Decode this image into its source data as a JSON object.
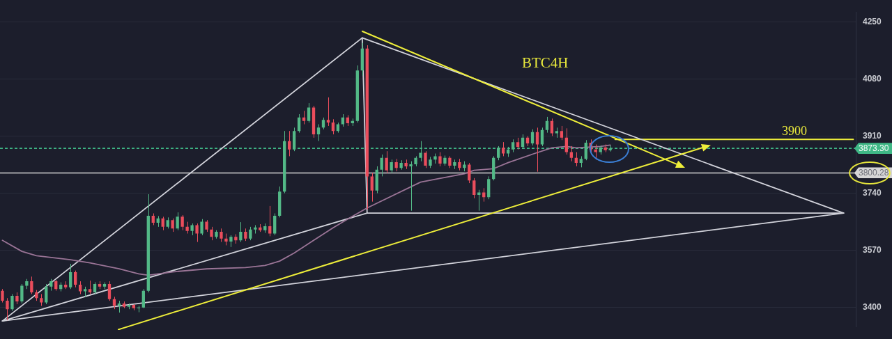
{
  "chart_data": {
    "type": "candlestick",
    "title": "BTC4H",
    "categories": [
      null,
      null,
      null,
      null,
      null,
      null,
      null,
      null,
      null,
      null,
      null,
      null,
      null,
      null,
      null,
      null,
      null,
      null,
      null,
      null,
      null,
      null,
      null,
      null,
      null,
      null,
      null,
      null,
      null,
      null,
      null,
      null,
      null,
      null,
      null,
      null,
      null,
      null,
      null,
      null,
      null,
      null,
      null,
      null,
      null,
      null,
      null,
      null,
      null,
      null,
      null,
      null,
      null,
      null,
      null,
      null,
      null,
      null,
      null,
      null,
      null,
      null,
      null,
      null,
      null,
      null,
      null,
      null,
      null,
      null,
      null,
      null,
      null,
      null,
      null,
      null,
      null,
      null,
      null,
      null,
      null,
      null,
      null,
      null,
      null,
      null,
      null,
      null,
      null,
      null,
      null,
      null,
      null,
      null,
      null,
      null,
      null,
      null,
      null,
      null,
      null,
      null,
      null,
      null,
      null,
      null,
      null,
      null,
      null,
      null,
      null,
      null,
      null,
      null,
      null,
      null,
      null,
      null,
      null,
      null,
      null,
      null,
      null,
      null,
      null,
      null,
      null,
      null,
      null,
      null,
      null,
      null,
      null,
      null,
      null,
      null,
      null,
      null,
      null,
      null,
      null,
      null,
      null,
      null,
      null,
      null,
      null,
      null,
      null,
      null,
      null,
      null,
      null,
      null,
      null,
      null,
      null,
      null,
      null,
      null,
      null,
      null,
      null,
      null,
      null,
      null,
      null,
      null,
      null,
      null,
      null,
      null,
      null,
      null,
      null,
      null
    ],
    "ohlc": [
      [
        3450,
        3455,
        3415,
        3420
      ],
      [
        3420,
        3428,
        3362,
        3395
      ],
      [
        3395,
        3440,
        3390,
        3435
      ],
      [
        3435,
        3445,
        3410,
        3418
      ],
      [
        3418,
        3470,
        3412,
        3465
      ],
      [
        3465,
        3485,
        3455,
        3478
      ],
      [
        3478,
        3492,
        3440,
        3445
      ],
      [
        3445,
        3452,
        3420,
        3428
      ],
      [
        3428,
        3440,
        3405,
        3415
      ],
      [
        3415,
        3470,
        3410,
        3462
      ],
      [
        3462,
        3485,
        3450,
        3478
      ],
      [
        3478,
        3482,
        3450,
        3455
      ],
      [
        3455,
        3475,
        3448,
        3468
      ],
      [
        3468,
        3478,
        3455,
        3460
      ],
      [
        3460,
        3530,
        3455,
        3505
      ],
      [
        3505,
        3510,
        3460,
        3468
      ],
      [
        3468,
        3478,
        3440,
        3448
      ],
      [
        3448,
        3462,
        3432,
        3455
      ],
      [
        3455,
        3480,
        3440,
        3445
      ],
      [
        3445,
        3475,
        3440,
        3470
      ],
      [
        3470,
        3478,
        3455,
        3462
      ],
      [
        3462,
        3475,
        3455,
        3470
      ],
      [
        3470,
        3478,
        3420,
        3425
      ],
      [
        3425,
        3432,
        3395,
        3405
      ],
      [
        3405,
        3420,
        3385,
        3412
      ],
      [
        3412,
        3418,
        3398,
        3402
      ],
      [
        3402,
        3412,
        3395,
        3408
      ],
      [
        3408,
        3410,
        3392,
        3398
      ],
      [
        3398,
        3405,
        3386,
        3400
      ],
      [
        3400,
        3455,
        3398,
        3450
      ],
      [
        3450,
        3737,
        3445,
        3673
      ],
      [
        3673,
        3680,
        3645,
        3652
      ],
      [
        3652,
        3672,
        3640,
        3665
      ],
      [
        3665,
        3670,
        3630,
        3640
      ],
      [
        3640,
        3668,
        3635,
        3660
      ],
      [
        3660,
        3665,
        3625,
        3635
      ],
      [
        3635,
        3683,
        3630,
        3670
      ],
      [
        3670,
        3675,
        3630,
        3640
      ],
      [
        3640,
        3655,
        3620,
        3628
      ],
      [
        3628,
        3650,
        3615,
        3645
      ],
      [
        3645,
        3650,
        3595,
        3620
      ],
      [
        3620,
        3663,
        3615,
        3655
      ],
      [
        3655,
        3660,
        3625,
        3632
      ],
      [
        3632,
        3640,
        3600,
        3610
      ],
      [
        3610,
        3630,
        3605,
        3625
      ],
      [
        3625,
        3635,
        3595,
        3605
      ],
      [
        3605,
        3620,
        3585,
        3596
      ],
      [
        3596,
        3615,
        3580,
        3610
      ],
      [
        3610,
        3618,
        3590,
        3600
      ],
      [
        3600,
        3654,
        3595,
        3625
      ],
      [
        3625,
        3635,
        3598,
        3605
      ],
      [
        3605,
        3640,
        3600,
        3632
      ],
      [
        3632,
        3645,
        3620,
        3638
      ],
      [
        3638,
        3648,
        3625,
        3630
      ],
      [
        3630,
        3650,
        3622,
        3642
      ],
      [
        3642,
        3702,
        3612,
        3620
      ],
      [
        3620,
        3680,
        3615,
        3673
      ],
      [
        3673,
        3760,
        3668,
        3745
      ],
      [
        3745,
        3925,
        3740,
        3895
      ],
      [
        3895,
        3925,
        3850,
        3870
      ],
      [
        3870,
        3935,
        3865,
        3925
      ],
      [
        3925,
        3975,
        3920,
        3965
      ],
      [
        3965,
        3985,
        3945,
        3955
      ],
      [
        3955,
        4008,
        3950,
        3995
      ],
      [
        3995,
        4000,
        3905,
        3915
      ],
      [
        3915,
        3945,
        3895,
        3935
      ],
      [
        3935,
        3965,
        3930,
        3958
      ],
      [
        3958,
        4025,
        3940,
        3950
      ],
      [
        3950,
        3960,
        3915,
        3925
      ],
      [
        3925,
        3950,
        3920,
        3945
      ],
      [
        3945,
        3975,
        3938,
        3965
      ],
      [
        3965,
        3972,
        3940,
        3948
      ],
      [
        3948,
        3962,
        3940,
        3955
      ],
      [
        3955,
        4120,
        3950,
        4105
      ],
      [
        4105,
        4187,
        4090,
        4170
      ],
      [
        4170,
        4180,
        3692,
        3790
      ],
      [
        3790,
        3800,
        3715,
        3748
      ],
      [
        3748,
        3820,
        3740,
        3810
      ],
      [
        3810,
        3855,
        3790,
        3845
      ],
      [
        3845,
        3865,
        3800,
        3808
      ],
      [
        3808,
        3840,
        3800,
        3832
      ],
      [
        3832,
        3842,
        3805,
        3815
      ],
      [
        3815,
        3838,
        3810,
        3830
      ],
      [
        3830,
        3840,
        3812,
        3820
      ],
      [
        3820,
        3835,
        3688,
        3826
      ],
      [
        3826,
        3850,
        3820,
        3845
      ],
      [
        3845,
        3895,
        3835,
        3860
      ],
      [
        3860,
        3865,
        3815,
        3822
      ],
      [
        3822,
        3848,
        3815,
        3840
      ],
      [
        3840,
        3858,
        3828,
        3850
      ],
      [
        3850,
        3862,
        3820,
        3828
      ],
      [
        3828,
        3852,
        3822,
        3845
      ],
      [
        3845,
        3850,
        3815,
        3822
      ],
      [
        3822,
        3840,
        3812,
        3832
      ],
      [
        3832,
        3842,
        3808,
        3815
      ],
      [
        3815,
        3835,
        3805,
        3825
      ],
      [
        3825,
        3830,
        3770,
        3778
      ],
      [
        3778,
        3785,
        3725,
        3735
      ],
      [
        3735,
        3750,
        3688,
        3742
      ],
      [
        3742,
        3755,
        3715,
        3728
      ],
      [
        3728,
        3790,
        3722,
        3782
      ],
      [
        3782,
        3850,
        3778,
        3845
      ],
      [
        3845,
        3880,
        3838,
        3875
      ],
      [
        3875,
        3892,
        3850,
        3858
      ],
      [
        3858,
        3878,
        3848,
        3870
      ],
      [
        3870,
        3900,
        3862,
        3892
      ],
      [
        3892,
        3905,
        3870,
        3878
      ],
      [
        3878,
        3915,
        3872,
        3905
      ],
      [
        3905,
        3910,
        3880,
        3888
      ],
      [
        3888,
        3930,
        3882,
        3922
      ],
      [
        3922,
        3935,
        3804,
        3885
      ],
      [
        3885,
        3935,
        3880,
        3928
      ],
      [
        3928,
        3967,
        3920,
        3955
      ],
      [
        3955,
        3962,
        3910,
        3918
      ],
      [
        3918,
        3935,
        3905,
        3925
      ],
      [
        3925,
        3940,
        3898,
        3905
      ],
      [
        3905,
        3933,
        3855,
        3862
      ],
      [
        3862,
        3880,
        3835,
        3845
      ],
      [
        3845,
        3862,
        3820,
        3830
      ],
      [
        3830,
        3850,
        3817,
        3842
      ],
      [
        3842,
        3898,
        3838,
        3890
      ],
      [
        3890,
        3900,
        3862,
        3870
      ],
      [
        3870,
        3885,
        3840,
        3862
      ],
      [
        3862,
        3882,
        3855,
        3876
      ],
      [
        3876,
        3885,
        3862,
        3868
      ],
      [
        3868,
        3882,
        3864,
        3873.3
      ],
      null,
      null,
      null,
      null,
      null,
      null,
      null,
      null,
      null,
      null,
      null,
      null,
      null,
      null,
      null,
      null,
      null,
      null,
      null,
      null,
      null,
      null,
      null,
      null,
      null,
      null,
      null,
      null,
      null,
      null,
      null,
      null,
      null,
      null,
      null,
      null,
      null,
      null,
      null,
      null,
      null,
      null,
      null,
      null,
      null,
      null,
      null,
      null,
      null,
      null
    ],
    "series": [
      {
        "type": "line",
        "color": "#9a7496",
        "values": [
          3600,
          null,
          null,
          null,
          3567,
          null,
          null,
          3554,
          null,
          null,
          null,
          null,
          null,
          null,
          3542,
          null,
          null,
          null,
          3533,
          null,
          null,
          null,
          null,
          null,
          3515,
          null,
          null,
          null,
          3500,
          null,
          3496,
          null,
          null,
          null,
          null,
          3506,
          null,
          null,
          null,
          null,
          null,
          null,
          3515,
          null,
          null,
          null,
          null,
          null,
          null,
          null,
          3519,
          null,
          null,
          null,
          3525,
          null,
          null,
          3538,
          null,
          null,
          3562,
          null,
          null,
          null,
          3600,
          null,
          null,
          null,
          3637,
          null,
          null,
          3663,
          null,
          null,
          null,
          3696,
          null,
          null,
          null,
          null,
          null,
          null,
          null,
          null,
          null,
          null,
          3773,
          null,
          null,
          null,
          null,
          null,
          null,
          null,
          null,
          3798,
          null,
          3808,
          null,
          null,
          null,
          3813,
          null,
          null,
          3831,
          null,
          null,
          null,
          null,
          3856,
          null,
          null,
          null,
          3875,
          null,
          null,
          3879,
          null,
          3875,
          null,
          null,
          null,
          null,
          3879,
          null,
          3883,
          null,
          null,
          null,
          null,
          null,
          null,
          null,
          null,
          null,
          null,
          null,
          null,
          null,
          null,
          null,
          null,
          null,
          null,
          null,
          null,
          null,
          null,
          null,
          null,
          null,
          null,
          null,
          null,
          null,
          null,
          null,
          null,
          null,
          null,
          null,
          null,
          null,
          null,
          null,
          null,
          null,
          null,
          null,
          null,
          null,
          null,
          null,
          null,
          null,
          null
        ]
      },
      {
        "type": "line",
        "color": "#d2d3db",
        "values": [
          3360,
          null,
          null,
          null,
          null,
          null,
          null,
          null,
          null,
          null,
          null,
          null,
          null,
          null,
          null,
          null,
          null,
          null,
          null,
          null,
          null,
          null,
          null,
          null,
          null,
          null,
          null,
          null,
          null,
          null,
          null,
          null,
          null,
          null,
          null,
          null,
          null,
          null,
          null,
          null,
          null,
          null,
          null,
          null,
          null,
          null,
          null,
          null,
          null,
          null,
          null,
          null,
          null,
          null,
          null,
          null,
          null,
          null,
          null,
          null,
          null,
          null,
          null,
          null,
          null,
          null,
          null,
          null,
          null,
          null,
          null,
          null,
          null,
          null,
          4202,
          3681,
          null,
          null,
          null,
          null,
          null,
          null,
          null,
          null,
          null,
          null,
          null,
          null,
          null,
          null,
          null,
          null,
          null,
          null,
          null,
          null,
          null,
          null,
          null,
          null,
          null,
          null,
          null,
          null,
          null,
          null,
          null,
          null,
          null,
          null,
          null,
          null,
          null,
          null,
          null,
          null,
          null,
          null,
          null,
          null,
          null,
          null,
          null,
          null,
          null,
          null,
          null,
          null,
          null,
          null,
          null,
          null,
          null,
          null,
          null,
          null,
          null,
          null,
          null,
          null,
          null,
          null,
          null,
          null,
          null,
          null,
          null,
          null,
          null,
          null,
          null,
          null,
          null,
          null,
          null,
          null,
          null,
          null,
          null,
          null,
          null,
          null,
          null,
          null,
          null,
          null,
          null,
          null,
          null,
          null,
          null,
          null,
          null,
          3681,
          null,
          null
        ]
      },
      {
        "type": "line",
        "color": "#d2d3db",
        "values": [
          3360,
          null,
          null,
          null,
          null,
          null,
          null,
          null,
          null,
          null,
          null,
          null,
          null,
          null,
          null,
          null,
          null,
          null,
          null,
          null,
          null,
          null,
          null,
          null,
          null,
          null,
          null,
          null,
          null,
          null,
          null,
          null,
          null,
          null,
          null,
          null,
          null,
          null,
          null,
          null,
          null,
          null,
          null,
          null,
          null,
          null,
          null,
          null,
          null,
          null,
          null,
          null,
          null,
          null,
          null,
          null,
          null,
          null,
          null,
          null,
          null,
          null,
          null,
          null,
          null,
          null,
          null,
          null,
          null,
          null,
          null,
          null,
          null,
          null,
          null,
          3681,
          null,
          null,
          null,
          null,
          null,
          null,
          null,
          null,
          null,
          null,
          null,
          null,
          null,
          null,
          null,
          null,
          null,
          null,
          null,
          null,
          null,
          null,
          null,
          null,
          null,
          null,
          null,
          null,
          null,
          null,
          null,
          null,
          null,
          null,
          null,
          null,
          null,
          null,
          null,
          null,
          null,
          null,
          null,
          null,
          null,
          null,
          null,
          null,
          null,
          null,
          null,
          null,
          null,
          null,
          null,
          null,
          null,
          null,
          null,
          null,
          null,
          null,
          null,
          null,
          null,
          null,
          null,
          null,
          null,
          null,
          null,
          null,
          null,
          null,
          null,
          null,
          null,
          null,
          null,
          null,
          null,
          null,
          null,
          null,
          null,
          null,
          null,
          null,
          null,
          null,
          null,
          null,
          null,
          null,
          null,
          null,
          null,
          null,
          null,
          null
        ]
      },
      {
        "type": "line",
        "color": "#d2d3db",
        "values": [
          null,
          null,
          null,
          null,
          null,
          null,
          null,
          null,
          null,
          null,
          null,
          null,
          null,
          null,
          null,
          null,
          null,
          null,
          null,
          null,
          null,
          null,
          null,
          null,
          null,
          null,
          null,
          null,
          null,
          null,
          null,
          null,
          null,
          null,
          null,
          null,
          null,
          null,
          null,
          null,
          null,
          null,
          null,
          null,
          null,
          null,
          null,
          null,
          null,
          null,
          null,
          null,
          null,
          null,
          null,
          null,
          null,
          null,
          null,
          null,
          null,
          null,
          null,
          null,
          null,
          null,
          null,
          null,
          null,
          null,
          null,
          null,
          null,
          null,
          4202,
          null,
          null,
          null,
          null,
          null,
          null,
          null,
          null,
          null,
          null,
          null,
          null,
          null,
          null,
          null,
          null,
          null,
          null,
          null,
          null,
          null,
          null,
          null,
          null,
          null,
          null,
          null,
          null,
          null,
          null,
          null,
          null,
          null,
          null,
          null,
          null,
          null,
          null,
          null,
          null,
          null,
          null,
          null,
          null,
          null,
          null,
          null,
          null,
          null,
          null,
          null,
          null,
          null,
          null,
          null,
          null,
          null,
          null,
          null,
          null,
          null,
          null,
          null,
          null,
          null,
          null,
          null,
          null,
          null,
          null,
          null,
          null,
          null,
          null,
          null,
          null,
          null,
          null,
          null,
          null,
          null,
          null,
          null,
          null,
          null,
          null,
          null,
          null,
          null,
          null,
          null,
          null,
          null,
          null,
          null,
          null,
          null,
          null,
          3681,
          null,
          null
        ]
      },
      {
        "type": "line",
        "color": "#d2d3db",
        "values": [
          3360,
          null,
          null,
          null,
          null,
          null,
          null,
          null,
          null,
          null,
          null,
          null,
          null,
          null,
          null,
          null,
          null,
          null,
          null,
          null,
          null,
          null,
          null,
          null,
          null,
          null,
          null,
          null,
          null,
          null,
          null,
          null,
          null,
          null,
          null,
          null,
          null,
          null,
          null,
          null,
          null,
          null,
          null,
          null,
          null,
          null,
          null,
          null,
          null,
          null,
          null,
          null,
          null,
          null,
          null,
          null,
          null,
          null,
          null,
          null,
          null,
          null,
          null,
          null,
          null,
          null,
          null,
          null,
          null,
          null,
          null,
          null,
          null,
          null,
          null,
          null,
          null,
          null,
          null,
          null,
          null,
          null,
          null,
          null,
          null,
          null,
          null,
          null,
          null,
          null,
          null,
          null,
          null,
          null,
          null,
          null,
          null,
          null,
          null,
          null,
          null,
          null,
          null,
          null,
          null,
          null,
          null,
          null,
          null,
          null,
          null,
          null,
          null,
          null,
          null,
          null,
          null,
          null,
          null,
          null,
          null,
          null,
          null,
          null,
          null,
          null,
          null,
          null,
          null,
          null,
          null,
          null,
          null,
          null,
          null,
          null,
          null,
          null,
          null,
          null,
          null,
          null,
          null,
          null,
          null,
          null,
          null,
          null,
          null,
          null,
          null,
          null,
          null,
          null,
          null,
          null,
          null,
          null,
          null,
          null,
          null,
          null,
          null,
          null,
          null,
          null,
          null,
          null,
          null,
          null,
          null,
          null,
          null,
          3681,
          null,
          null
        ]
      },
      {
        "type": "line",
        "color": "#eeee3a",
        "values": [
          null,
          null,
          null,
          null,
          null,
          null,
          null,
          null,
          null,
          null,
          null,
          null,
          null,
          null,
          null,
          null,
          null,
          null,
          null,
          null,
          null,
          null,
          null,
          null,
          null,
          null,
          null,
          null,
          null,
          null,
          null,
          null,
          null,
          null,
          null,
          null,
          null,
          null,
          null,
          null,
          null,
          null,
          null,
          null,
          null,
          null,
          null,
          null,
          null,
          null,
          null,
          null,
          null,
          null,
          null,
          null,
          null,
          null,
          null,
          null,
          null,
          null,
          null,
          null,
          null,
          null,
          null,
          null,
          null,
          null,
          null,
          null,
          null,
          null,
          null,
          null,
          null,
          null,
          null,
          null,
          null,
          null,
          null,
          null,
          null,
          null,
          null,
          null,
          null,
          null,
          null,
          null,
          null,
          null,
          null,
          null,
          null,
          null,
          null,
          null,
          null,
          null,
          null,
          null,
          null,
          null,
          null,
          null,
          null,
          null,
          null,
          null,
          null,
          null,
          null,
          null,
          null,
          null,
          null,
          null,
          null,
          null,
          null,
          null,
          null,
          null,
          3900,
          null,
          null,
          null,
          null,
          null,
          null,
          null,
          null,
          null,
          null,
          null,
          null,
          null,
          null,
          null,
          null,
          null,
          null,
          null,
          null,
          null,
          null,
          null,
          null,
          null,
          null,
          null,
          null,
          null,
          null,
          null,
          null,
          null,
          null,
          null,
          null,
          null,
          null,
          null,
          null,
          null,
          null,
          null,
          null,
          null,
          null,
          null,
          null,
          3900
        ]
      }
    ],
    "ylim": [
      3342,
      4279
    ],
    "yticks": [
      3400,
      3570,
      3740,
      3910,
      4080,
      4250
    ],
    "grid": "y",
    "tick_labels": "y",
    "ref_lines": [
      {
        "axis": "y",
        "value": 3873.3,
        "label": "3873.30",
        "color": "#3fb886",
        "line_style": "dashed"
      },
      {
        "axis": "y",
        "value": 3800.28,
        "label": "3800.28",
        "color": "#d6d6d6"
      }
    ],
    "annotations": [
      {
        "text": "3900",
        "y": 3900
      }
    ]
  }
}
